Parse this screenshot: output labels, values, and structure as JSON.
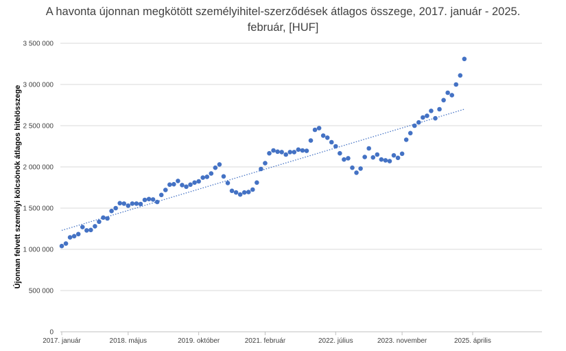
{
  "chart_data": {
    "type": "scatter",
    "title_line1": "A havonta újonnan megkötött személyihitel-szerződések átlagos összege, 2017. január - 2025.",
    "title_line2": "február, [HUF]",
    "ylabel": "Újonnan felvett személyi kölcsönök átlagos hitelösszege",
    "xlabel": "",
    "ylim": [
      0,
      3500000
    ],
    "yticks": [
      0,
      500000,
      1000000,
      1500000,
      2000000,
      2500000,
      3000000,
      3500000
    ],
    "ytick_labels": [
      "0",
      "500 000",
      "1 000 000",
      "1 500 000",
      "2 000 000",
      "2 500 000",
      "3 000 000",
      "3 500 000"
    ],
    "x_month_range": [
      0,
      111
    ],
    "xticks": [
      {
        "label": "2017. január",
        "month": 0
      },
      {
        "label": "2018. május",
        "month": 16
      },
      {
        "label": "2019. október",
        "month": 33
      },
      {
        "label": "2021. február",
        "month": 49
      },
      {
        "label": "2022. július",
        "month": 66
      },
      {
        "label": "2023. november",
        "month": 82
      },
      {
        "label": "2025. április",
        "month": 99
      }
    ],
    "grid": "horizontal",
    "trendline": {
      "type": "linear",
      "start": 1230000,
      "end": 2700000
    },
    "colors": {
      "marker": "#4472C4",
      "trend": "#4472C4",
      "grid": "#d9d9d9",
      "axis": "#bfbfbf"
    },
    "values": [
      1040000,
      1070000,
      1145000,
      1160000,
      1185000,
      1270000,
      1230000,
      1235000,
      1280000,
      1335000,
      1385000,
      1375000,
      1465000,
      1500000,
      1560000,
      1555000,
      1530000,
      1555000,
      1555000,
      1550000,
      1600000,
      1610000,
      1605000,
      1575000,
      1660000,
      1720000,
      1785000,
      1790000,
      1830000,
      1780000,
      1760000,
      1785000,
      1810000,
      1825000,
      1870000,
      1880000,
      1920000,
      1990000,
      2030000,
      1885000,
      1805000,
      1710000,
      1690000,
      1665000,
      1690000,
      1695000,
      1725000,
      1810000,
      1975000,
      2045000,
      2165000,
      2200000,
      2185000,
      2180000,
      2150000,
      2180000,
      2180000,
      2210000,
      2200000,
      2195000,
      2320000,
      2450000,
      2470000,
      2380000,
      2355000,
      2300000,
      2250000,
      2165000,
      2090000,
      2105000,
      1990000,
      1930000,
      1980000,
      2120000,
      2225000,
      2115000,
      2150000,
      2090000,
      2080000,
      2070000,
      2140000,
      2110000,
      2160000,
      2330000,
      2410000,
      2500000,
      2540000,
      2600000,
      2620000,
      2680000,
      2590000,
      2700000,
      2810000,
      2900000,
      2870000,
      3000000,
      3110000,
      3310000
    ]
  }
}
